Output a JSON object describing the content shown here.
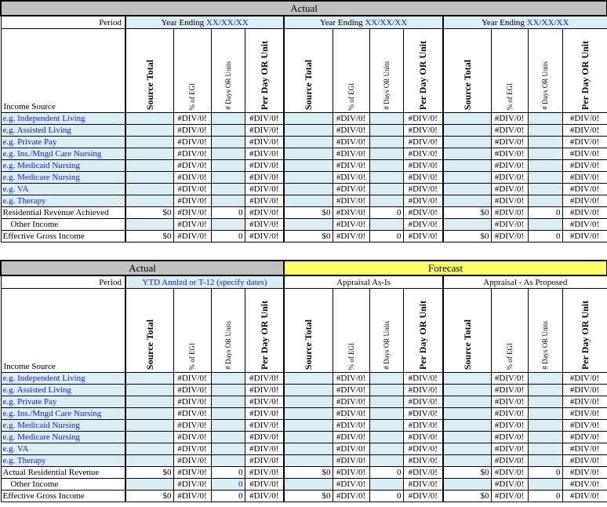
{
  "tables": [
    {
      "title_groups": [
        {
          "label": "Actual",
          "span": 3,
          "color": "#c0c0c0"
        }
      ],
      "period_label": "Period",
      "periods": [
        {
          "prefix": "Year Ending ",
          "blue_text": "XX/XX/XX",
          "shaded": true
        },
        {
          "prefix": "Year Ending ",
          "blue_text": "XX/XX/XX",
          "shaded": true
        },
        {
          "prefix": "Year Ending ",
          "blue_text": "XX/XX/XX",
          "shaded": true
        }
      ],
      "income_source_label": "Income Source",
      "columns": [
        "Source Total",
        "% of EGI",
        "# Days OR Units",
        "Per Day OR Unit"
      ],
      "rows": [
        {
          "label": "e.g. Independent Living",
          "type": "input",
          "values": [
            "",
            "#DIV/0!",
            "",
            "#DIV/0!",
            "",
            "#DIV/0!",
            "",
            "#DIV/0!",
            "",
            "#DIV/0!",
            "",
            "#DIV/0!"
          ]
        },
        {
          "label": "e.g. Assisted Living",
          "type": "input",
          "values": [
            "",
            "#DIV/0!",
            "",
            "#DIV/0!",
            "",
            "#DIV/0!",
            "",
            "#DIV/0!",
            "",
            "#DIV/0!",
            "",
            "#DIV/0!"
          ]
        },
        {
          "label": "e.g. Private Pay",
          "type": "input",
          "values": [
            "",
            "#DIV/0!",
            "",
            "#DIV/0!",
            "",
            "#DIV/0!",
            "",
            "#DIV/0!",
            "",
            "#DIV/0!",
            "",
            "#DIV/0!"
          ]
        },
        {
          "label": "e.g. Ins./Mngd Care Nursing",
          "type": "input",
          "values": [
            "",
            "#DIV/0!",
            "",
            "#DIV/0!",
            "",
            "#DIV/0!",
            "",
            "#DIV/0!",
            "",
            "#DIV/0!",
            "",
            "#DIV/0!"
          ]
        },
        {
          "label": "e.g. Medicaid Nursing",
          "type": "input",
          "values": [
            "",
            "#DIV/0!",
            "",
            "#DIV/0!",
            "",
            "#DIV/0!",
            "",
            "#DIV/0!",
            "",
            "#DIV/0!",
            "",
            "#DIV/0!"
          ]
        },
        {
          "label": "e.g. Medicare Nursing",
          "type": "input",
          "values": [
            "",
            "#DIV/0!",
            "",
            "#DIV/0!",
            "",
            "#DIV/0!",
            "",
            "#DIV/0!",
            "",
            "#DIV/0!",
            "",
            "#DIV/0!"
          ]
        },
        {
          "label": "e.g. VA",
          "type": "input",
          "values": [
            "",
            "#DIV/0!",
            "",
            "#DIV/0!",
            "",
            "#DIV/0!",
            "",
            "#DIV/0!",
            "",
            "#DIV/0!",
            "",
            "#DIV/0!"
          ]
        },
        {
          "label": "e.g. Therapy",
          "type": "input",
          "values": [
            "",
            "#DIV/0!",
            "",
            "#DIV/0!",
            "",
            "#DIV/0!",
            "",
            "#DIV/0!",
            "",
            "#DIV/0!",
            "",
            "#DIV/0!"
          ]
        },
        {
          "label": "Residential Revenue Achieved",
          "type": "total",
          "values": [
            "$0",
            "#DIV/0!",
            "0",
            "#DIV/0!",
            "$0",
            "#DIV/0!",
            "0",
            "#DIV/0!",
            "$0",
            "#DIV/0!",
            "0",
            "#DIV/0!"
          ]
        },
        {
          "label": "Other Income",
          "type": "other",
          "values": [
            "",
            "#DIV/0!",
            "",
            "#DIV/0!",
            "",
            "#DIV/0!",
            "",
            "#DIV/0!",
            "",
            "#DIV/0!",
            "",
            "#DIV/0!"
          ]
        },
        {
          "label": "Effective Gross Income",
          "type": "total",
          "values": [
            "$0",
            "#DIV/0!",
            "0",
            "#DIV/0!",
            "$0",
            "#DIV/0!",
            "0",
            "#DIV/0!",
            "$0",
            "#DIV/0!",
            "0",
            "#DIV/0!"
          ]
        }
      ]
    },
    {
      "title_groups": [
        {
          "label": "Actual",
          "span": 1,
          "color": "#c0c0c0"
        },
        {
          "label": "Forecast",
          "span": 2,
          "color": "#ffff66"
        }
      ],
      "period_label": "Period",
      "periods": [
        {
          "prefix": "",
          "blue_text": "YTD Annlzd or T-12 (specify dates)",
          "shaded": true
        },
        {
          "prefix": "Appraisal As-Is",
          "blue_text": "",
          "shaded": false
        },
        {
          "prefix": "Appraisal - As Proposed",
          "blue_text": "",
          "shaded": false
        }
      ],
      "income_source_label": "Income Source",
      "columns": [
        "Source Total",
        "% of EGI",
        "# Days OR Units",
        "Per Day OR Unit"
      ],
      "rows": [
        {
          "label": "e.g. Independent Living",
          "type": "input",
          "values": [
            "",
            "#DIV/0!",
            "",
            "#DIV/0!",
            "",
            "#DIV/0!",
            "",
            "#DIV/0!",
            "",
            "#DIV/0!",
            "",
            "#DIV/0!"
          ]
        },
        {
          "label": "e.g. Assisted Living",
          "type": "input",
          "values": [
            "",
            "#DIV/0!",
            "",
            "#DIV/0!",
            "",
            "#DIV/0!",
            "",
            "#DIV/0!",
            "",
            "#DIV/0!",
            "",
            "#DIV/0!"
          ]
        },
        {
          "label": "e.g. Private Pay",
          "type": "input",
          "values": [
            "",
            "#DIV/0!",
            "",
            "#DIV/0!",
            "",
            "#DIV/0!",
            "",
            "#DIV/0!",
            "",
            "#DIV/0!",
            "",
            "#DIV/0!"
          ]
        },
        {
          "label": "e.g. Ins./Mngd Care Nursing",
          "type": "input",
          "values": [
            "",
            "#DIV/0!",
            "",
            "#DIV/0!",
            "",
            "#DIV/0!",
            "",
            "#DIV/0!",
            "",
            "#DIV/0!",
            "",
            "#DIV/0!"
          ]
        },
        {
          "label": "e.g. Medicaid Nursing",
          "type": "input",
          "values": [
            "",
            "#DIV/0!",
            "",
            "#DIV/0!",
            "",
            "#DIV/0!",
            "",
            "#DIV/0!",
            "",
            "#DIV/0!",
            "",
            "#DIV/0!"
          ]
        },
        {
          "label": "e.g. Medicare Nursing",
          "type": "input",
          "values": [
            "",
            "#DIV/0!",
            "",
            "#DIV/0!",
            "",
            "#DIV/0!",
            "",
            "#DIV/0!",
            "",
            "#DIV/0!",
            "",
            "#DIV/0!"
          ]
        },
        {
          "label": "e.g. VA",
          "type": "input",
          "values": [
            "",
            "#DIV/0!",
            "",
            "#DIV/0!",
            "",
            "#DIV/0!",
            "",
            "#DIV/0!",
            "",
            "#DIV/0!",
            "",
            "#DIV/0!"
          ]
        },
        {
          "label": "e.g. Therapy",
          "type": "input",
          "values": [
            "",
            "#DIV/0!",
            "",
            "#DIV/0!",
            "",
            "#DIV/0!",
            "",
            "#DIV/0!",
            "",
            "#DIV/0!",
            "",
            "#DIV/0!"
          ]
        },
        {
          "label": "Actual Residential Revenue",
          "type": "total",
          "values": [
            "$0",
            "#DIV/0!",
            "0",
            "#DIV/0!",
            "$0",
            "#DIV/0!",
            "0",
            "#DIV/0!",
            "$0",
            "#DIV/0!",
            "0",
            "#DIV/0!"
          ]
        },
        {
          "label": "Other Income",
          "type": "other",
          "values": [
            "",
            "#DIV/0!",
            "0",
            "#DIV/0!",
            "",
            "#DIV/0!",
            "",
            "#DIV/0!",
            "",
            "#DIV/0!",
            "",
            "#DIV/0!"
          ]
        },
        {
          "label": "Effective Gross Income",
          "type": "total",
          "values": [
            "$0",
            "#DIV/0!",
            "0",
            "#DIV/0!",
            "$0",
            "#DIV/0!",
            "0",
            "#DIV/0!",
            "$0",
            "#DIV/0!",
            "0",
            "#DIV/0!"
          ]
        }
      ]
    }
  ]
}
